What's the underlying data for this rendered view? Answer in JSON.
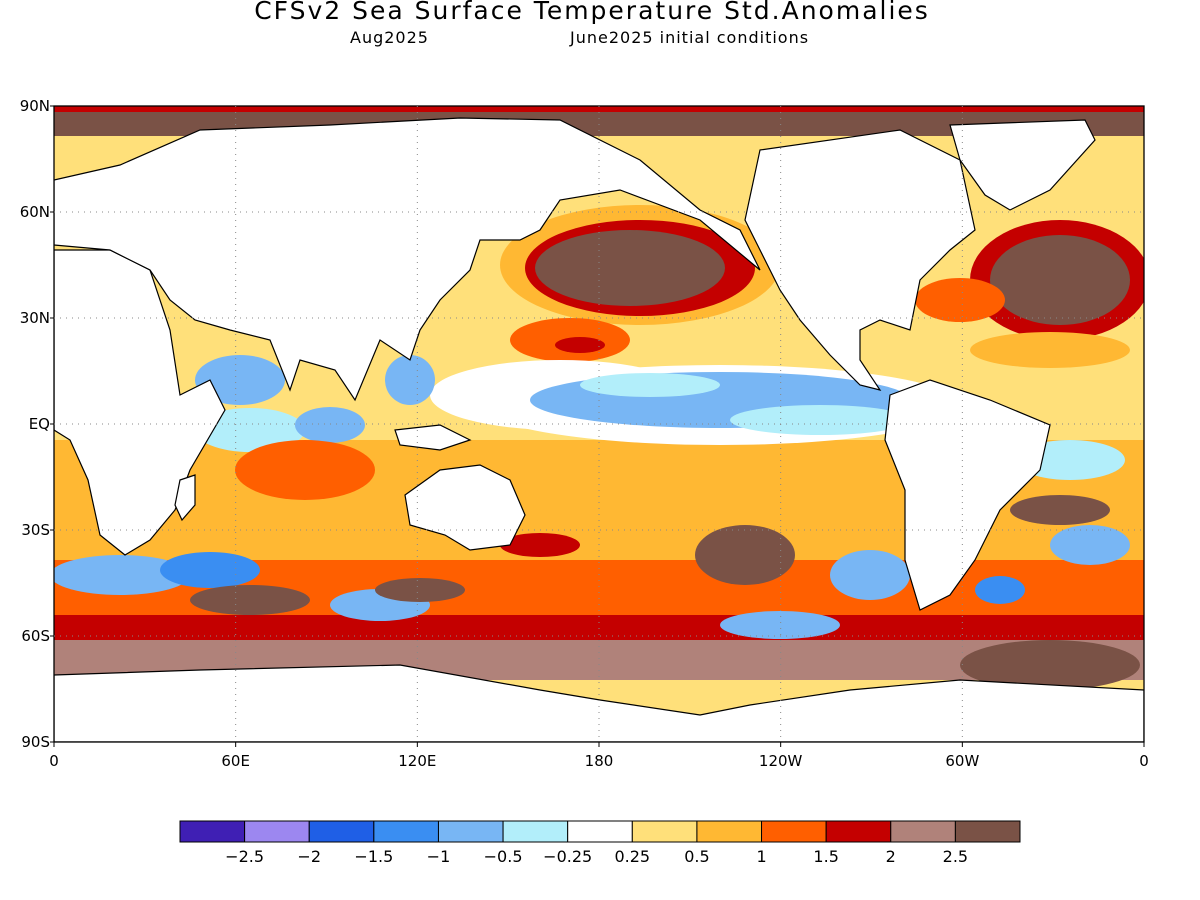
{
  "title": "CFSv2 Sea Surface Temperature Std.Anomalies",
  "valid_month": "Aug2025",
  "initial_conditions": "June2025 initial conditions",
  "map": {
    "lat_labels": [
      "90N",
      "60N",
      "30N",
      "EQ",
      "30S",
      "60S",
      "90S"
    ],
    "lat_values": [
      90,
      60,
      30,
      0,
      -30,
      -60,
      -90
    ],
    "lon_labels": [
      "0",
      "60E",
      "120E",
      "180",
      "120W",
      "60W",
      "0"
    ],
    "lon_values": [
      0,
      60,
      120,
      180,
      240,
      300,
      360
    ],
    "gridlines": "dotted"
  },
  "colorbar": {
    "levels": [
      "-2.5",
      "-2",
      "-1.5",
      "-1",
      "-0.5",
      "-0.25",
      "0.25",
      "0.5",
      "1",
      "1.5",
      "2",
      "2.5"
    ],
    "colors": [
      "#3f1fb4",
      "#9c87f0",
      "#1f5fe6",
      "#3a8ef2",
      "#78b6f4",
      "#b2eefa",
      "#ffffff",
      "#ffe07a",
      "#ffb833",
      "#ff5f00",
      "#c40000",
      "#b0827a",
      "#7a5246"
    ]
  }
}
